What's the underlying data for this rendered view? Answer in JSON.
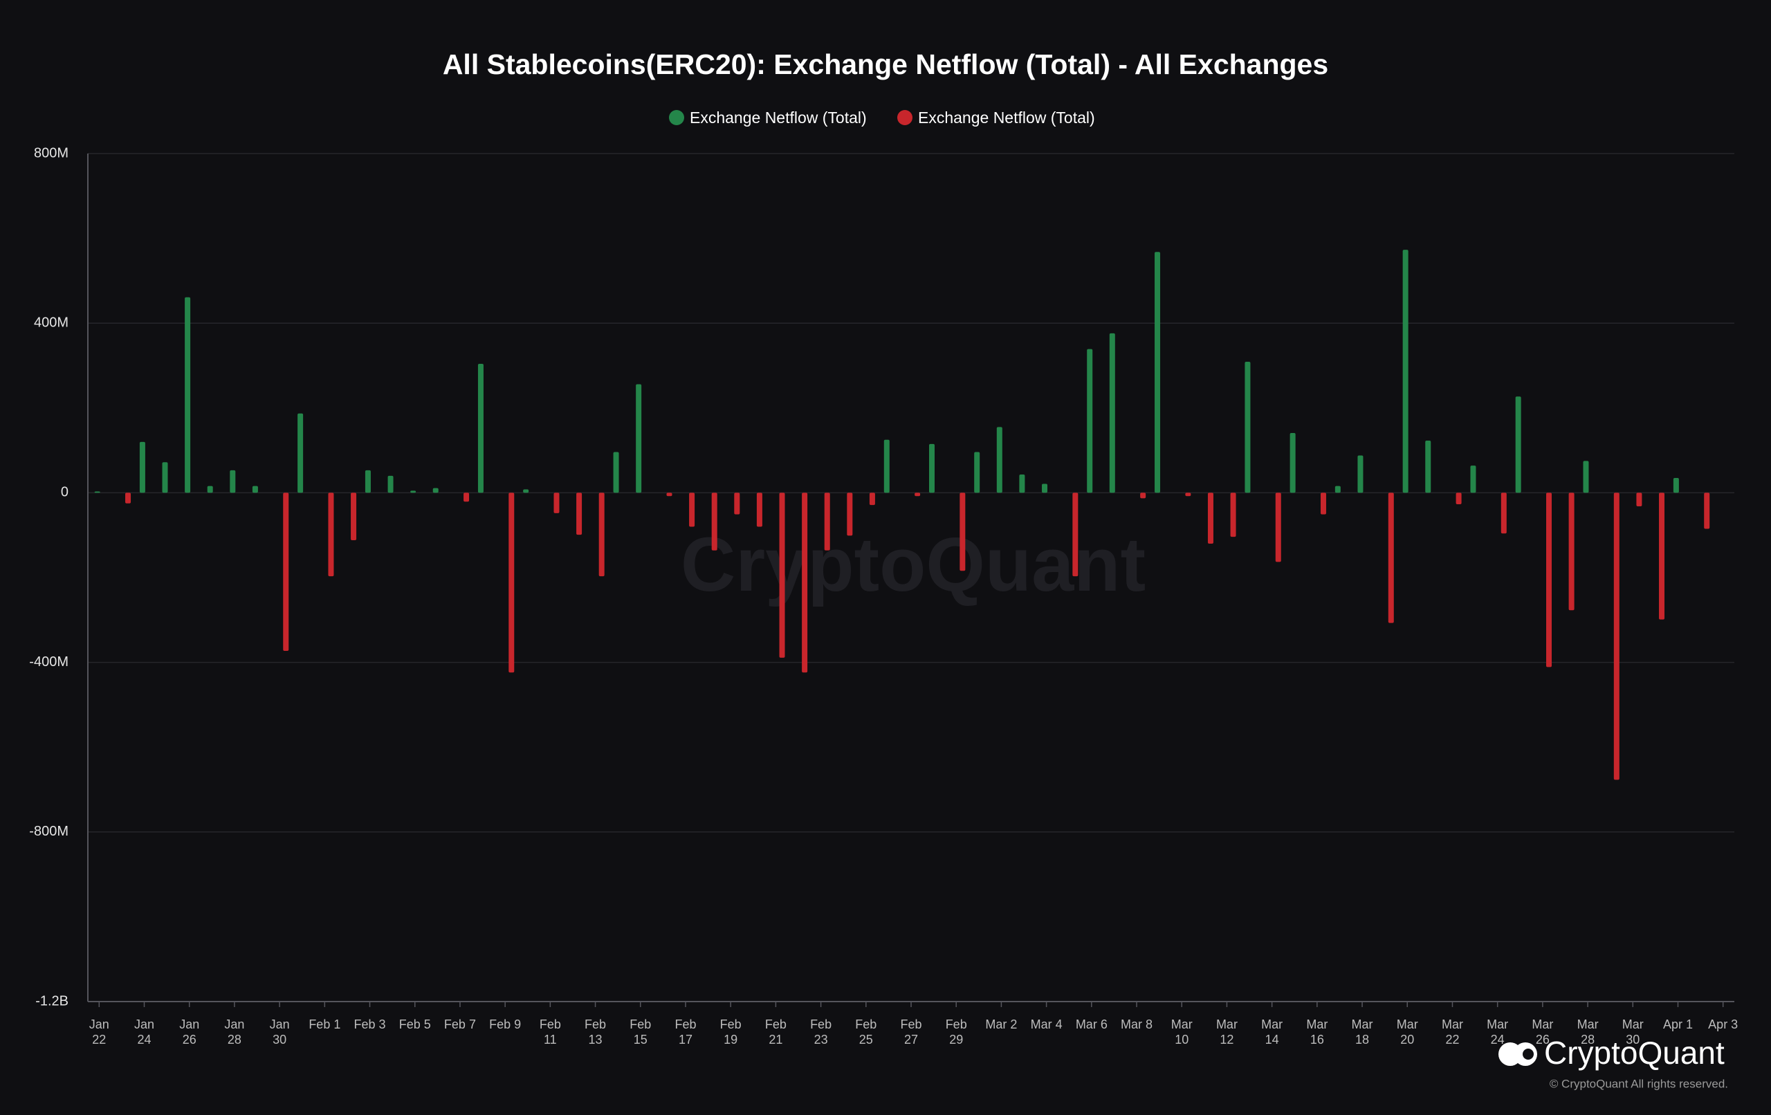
{
  "chart_data": {
    "type": "bar",
    "title": "All Stablecoins(ERC20): Exchange Netflow (Total) - All Exchanges",
    "categories": [
      "Jan 22",
      null,
      "Jan 24",
      null,
      "Jan 26",
      null,
      "Jan 28",
      null,
      "Jan 30",
      null,
      "Feb 1",
      null,
      "Feb 3",
      null,
      "Feb 5",
      null,
      "Feb 7",
      null,
      "Feb 9",
      null,
      "Feb 11",
      null,
      "Feb 13",
      null,
      "Feb 15",
      null,
      "Feb 17",
      null,
      "Feb 19",
      null,
      "Feb 21",
      null,
      "Feb 23",
      null,
      "Feb 25",
      null,
      "Feb 27",
      null,
      "Feb 29",
      null,
      "Mar 2",
      null,
      "Mar 4",
      null,
      "Mar 6",
      null,
      "Mar 8",
      null,
      "Mar 10",
      null,
      "Mar 12",
      null,
      "Mar 14",
      null,
      "Mar 16",
      null,
      "Mar 18",
      null,
      "Mar 20",
      null,
      "Mar 22",
      null,
      "Mar 24",
      null,
      "Mar 26",
      null,
      "Mar 28",
      null,
      "Mar 30",
      null,
      "Apr 1",
      null,
      "Apr 3"
    ],
    "series": [
      {
        "name": "Exchange Netflow (Total)",
        "color": "#24864a",
        "values": [
          3,
          null,
          120,
          72,
          461,
          16,
          53,
          16,
          null,
          187,
          null,
          null,
          53,
          40,
          5,
          11,
          null,
          304,
          null,
          8,
          null,
          null,
          null,
          96,
          256,
          null,
          null,
          null,
          null,
          null,
          null,
          null,
          null,
          null,
          null,
          125,
          null,
          115,
          null,
          96,
          155,
          43,
          21,
          null,
          339,
          376,
          null,
          568,
          null,
          null,
          null,
          309,
          null,
          141,
          null,
          16,
          88,
          null,
          573,
          123,
          null,
          64,
          null,
          227,
          null,
          null,
          75,
          null,
          null,
          null,
          35,
          null,
          null
        ]
      },
      {
        "name": "Exchange Netflow (Total)",
        "color": "#c8262c",
        "values": [
          null,
          -25,
          null,
          null,
          null,
          null,
          null,
          null,
          -373,
          null,
          -197,
          -112,
          null,
          null,
          null,
          null,
          -21,
          null,
          -424,
          null,
          -48,
          -99,
          -197,
          null,
          null,
          -8,
          -80,
          -136,
          -51,
          -80,
          -389,
          -424,
          -136,
          -101,
          -29,
          null,
          -8,
          null,
          -184,
          null,
          null,
          null,
          null,
          -197,
          null,
          null,
          -13,
          null,
          -8,
          -120,
          -104,
          null,
          -163,
          null,
          -51,
          null,
          null,
          -307,
          null,
          null,
          -27,
          null,
          -96,
          null,
          -411,
          -277,
          null,
          -677,
          -32,
          -299,
          null,
          -85,
          null
        ]
      }
    ],
    "ylim": [
      -1200,
      800
    ],
    "yticks": [
      {
        "value": -1200,
        "label": "-1.2B"
      },
      {
        "value": -800,
        "label": "-800M"
      },
      {
        "value": -400,
        "label": "-400M"
      },
      0,
      {
        "value": 400,
        "label": "400M"
      },
      {
        "value": 800,
        "label": "800M"
      }
    ],
    "grid": true,
    "watermark": "CryptoQuant",
    "logo": "CryptoQuant",
    "copyright": "© CryptoQuant All rights reserved."
  }
}
